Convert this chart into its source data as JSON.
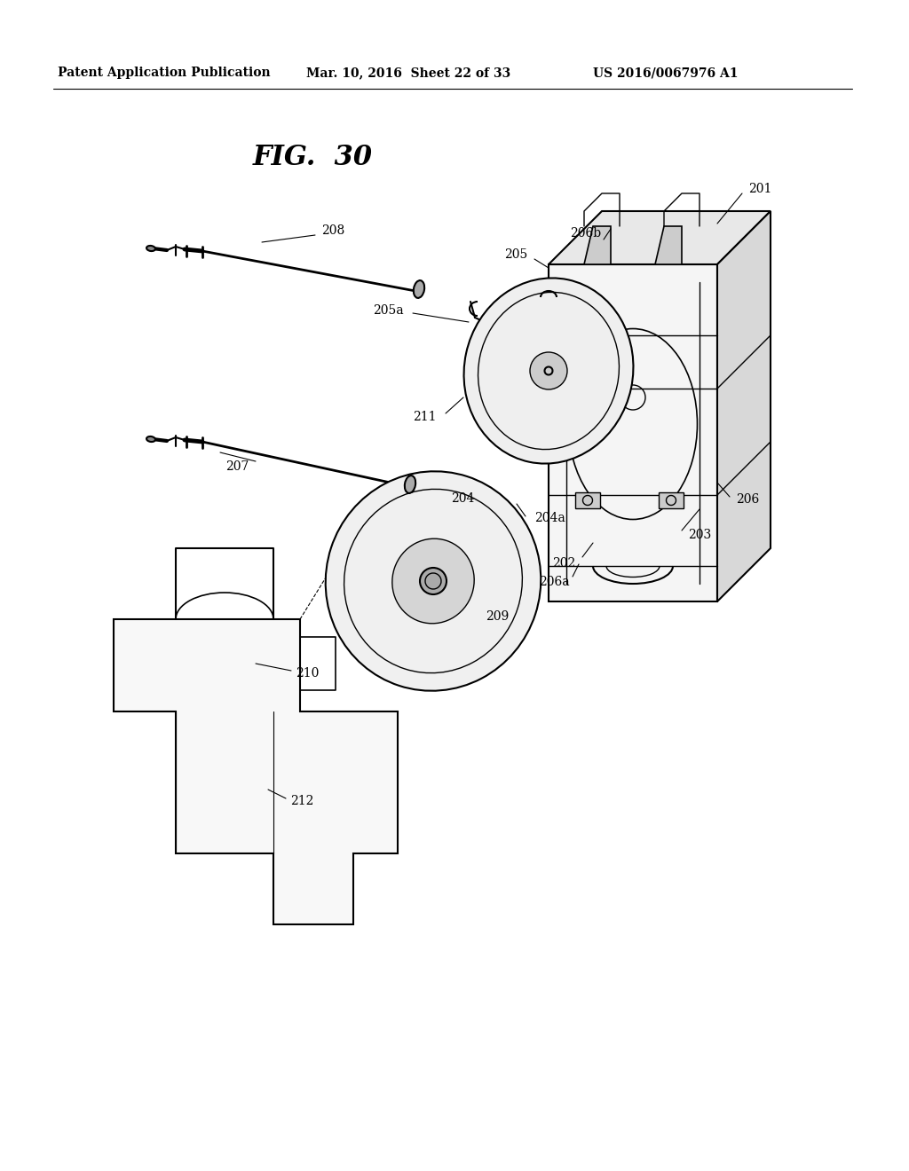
{
  "header_left": "Patent Application Publication",
  "header_mid": "Mar. 10, 2016  Sheet 22 of 33",
  "header_right": "US 2016/0067976 A1",
  "fig_label": "FIG.  30",
  "bg_color": "#ffffff",
  "line_color": "#000000"
}
